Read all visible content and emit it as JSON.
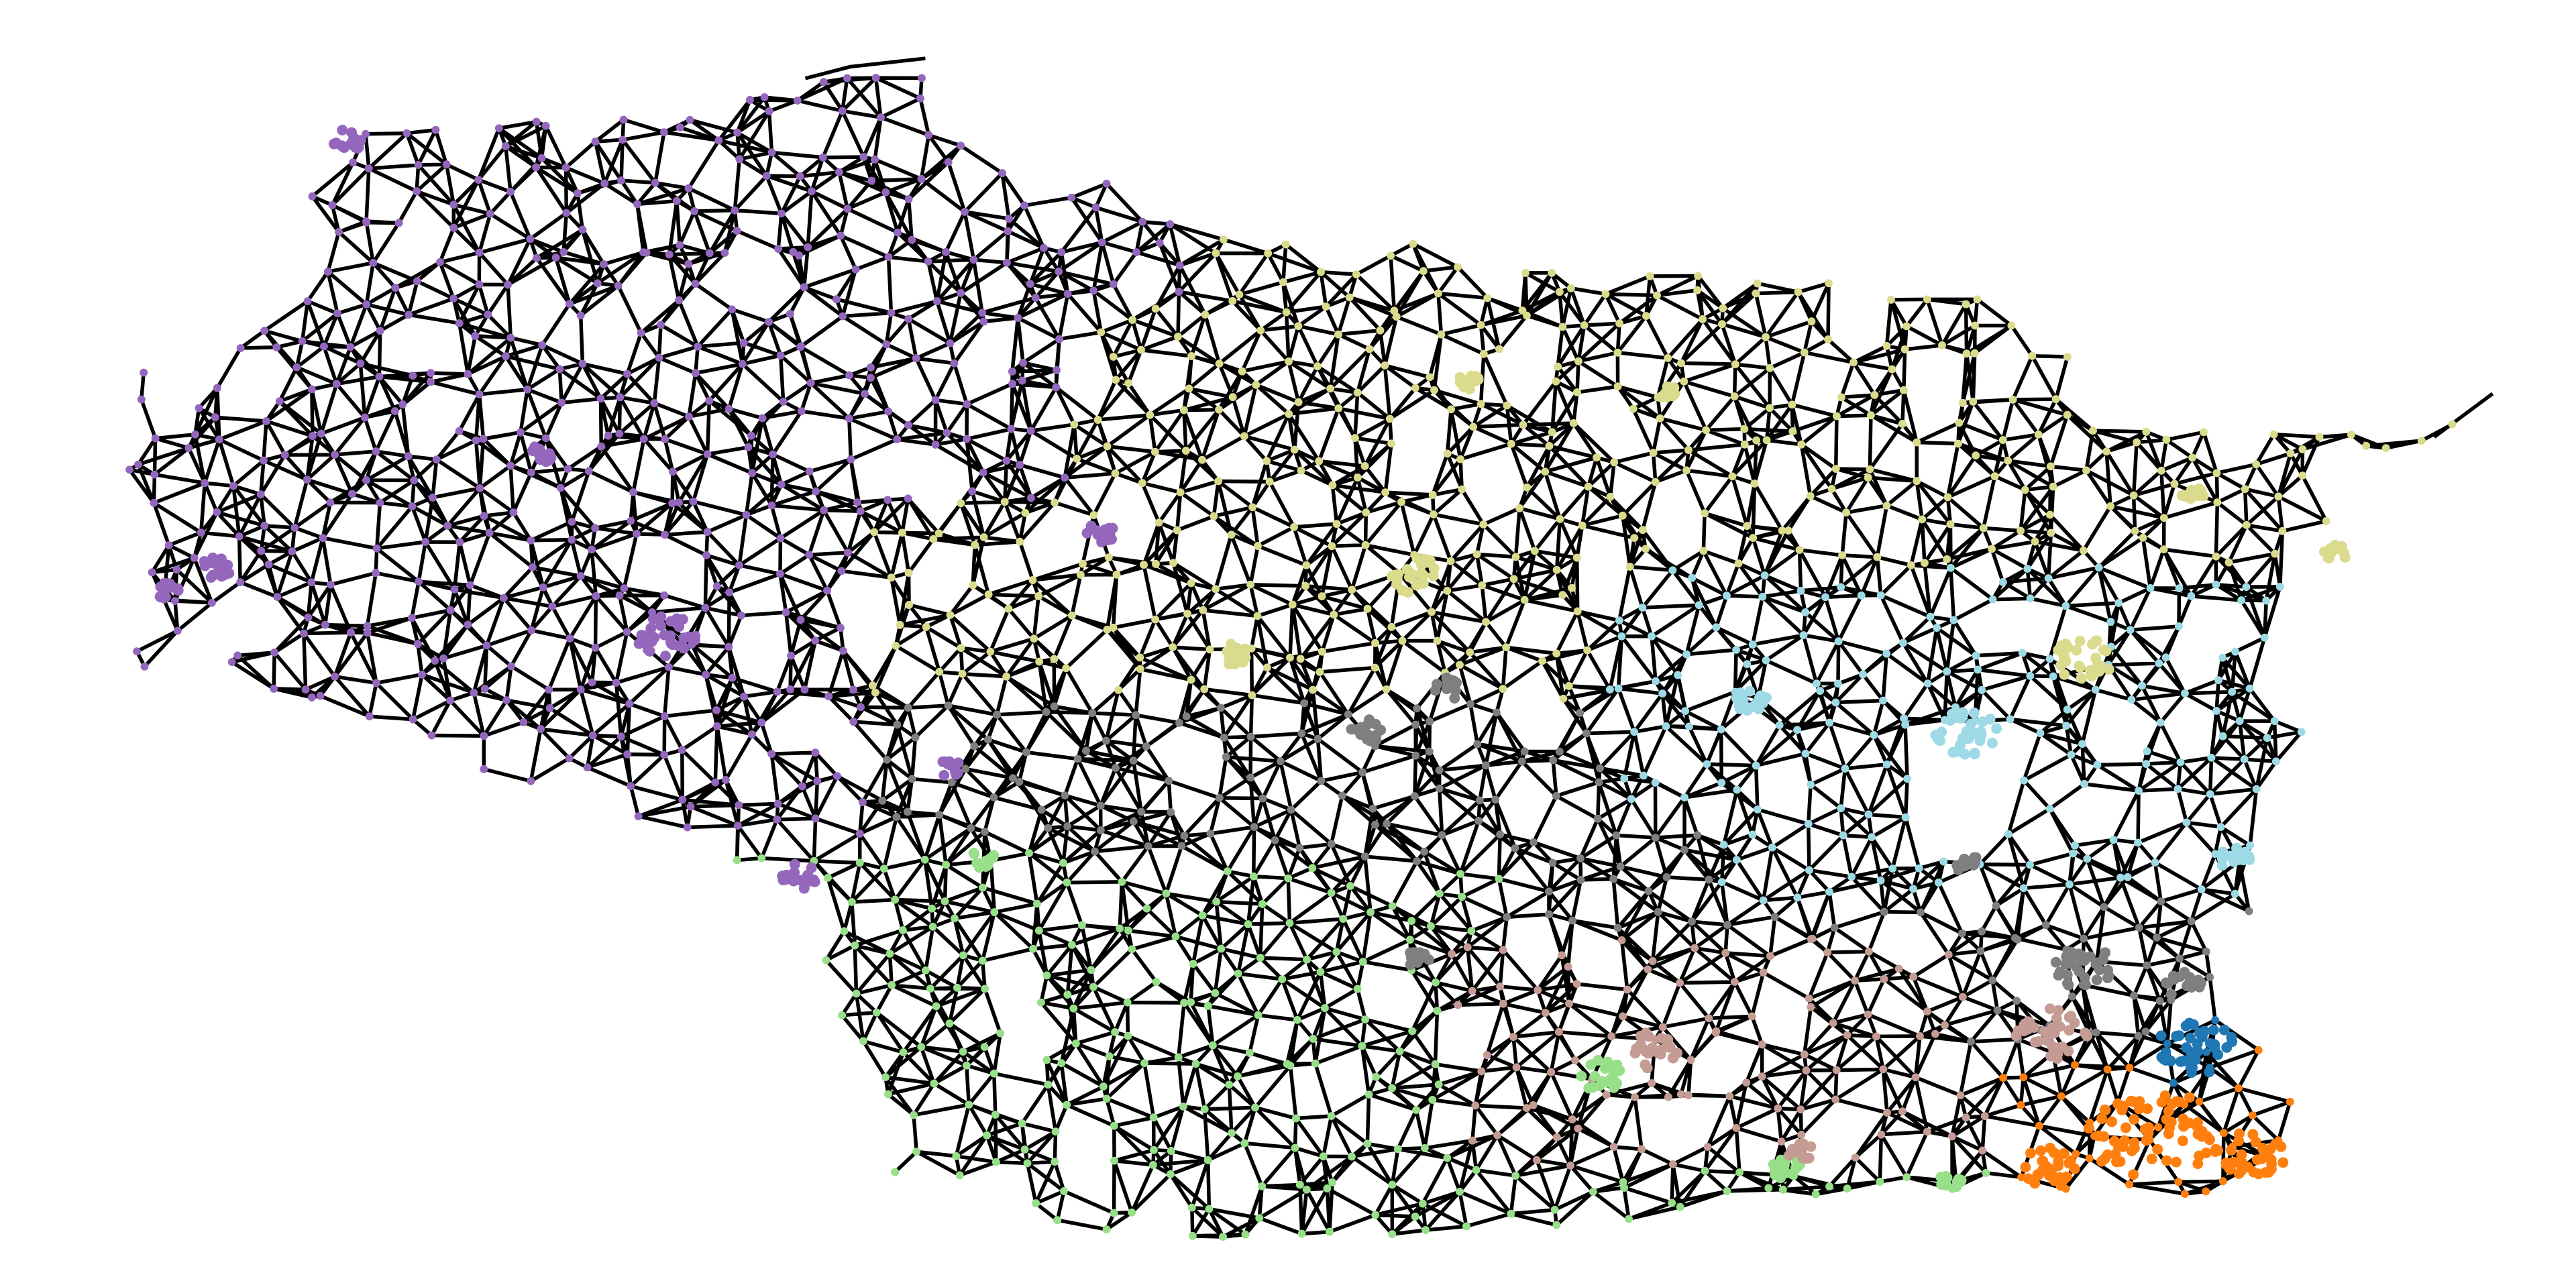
{
  "chart_data": {
    "type": "network",
    "title": "",
    "subtitle": "",
    "axes_visible": false,
    "legend": "none",
    "background": "#ffffff",
    "edge_color": "#000000",
    "node_shape": "circle",
    "partitions": [
      {
        "id": "purple",
        "color": "#9467bd",
        "region": "north-west"
      },
      {
        "id": "olive",
        "color": "#dbdb8d",
        "region": "north-east"
      },
      {
        "id": "light-blue",
        "color": "#9edae5",
        "region": "east"
      },
      {
        "id": "gray",
        "color": "#7f7f7f",
        "region": "center"
      },
      {
        "id": "green",
        "color": "#98df8a",
        "region": "south-west"
      },
      {
        "id": "rose",
        "color": "#c49c94",
        "region": "south-center"
      },
      {
        "id": "orange",
        "color": "#ff7f0e",
        "region": "south-east"
      },
      {
        "id": "blue",
        "color": "#1f77b4",
        "region": "east-coast"
      }
    ]
  }
}
